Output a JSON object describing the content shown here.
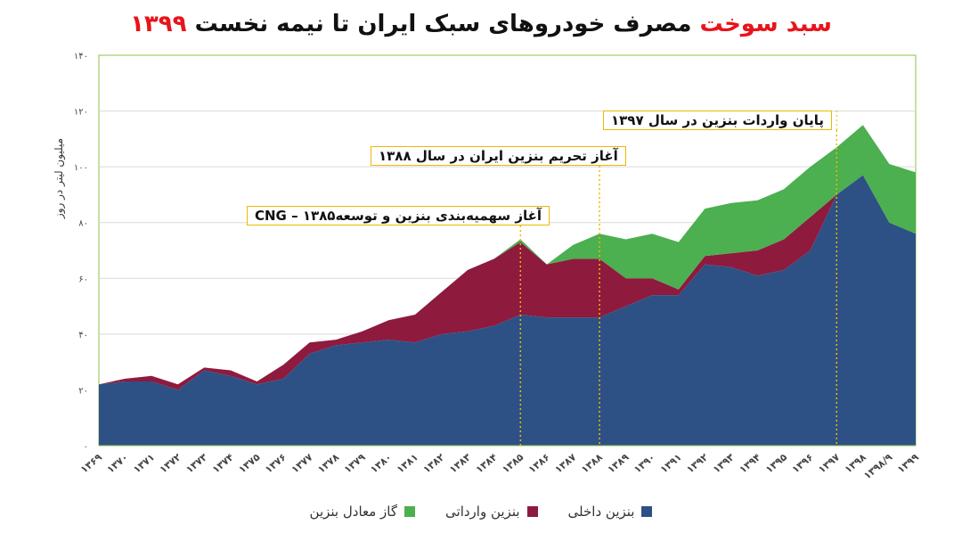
{
  "title": {
    "part1": "سبد سوخت",
    "part2": "مصرف خودروهای سبک ایران تا نیمه نخست",
    "part3": "۱۳۹۹",
    "color_red": "#e8141b",
    "color_black": "#111111"
  },
  "chart_data": {
    "type": "area",
    "stacked": true,
    "ylabel": "میلیون لیتر در روز",
    "ylim": [
      0,
      140
    ],
    "y_ticks": [
      "۰",
      "۲۰",
      "۴۰",
      "۶۰",
      "۸۰",
      "۱۰۰",
      "۱۲۰",
      "۱۴۰"
    ],
    "y_tick_values": [
      0,
      20,
      40,
      60,
      80,
      100,
      120,
      140
    ],
    "grid": true,
    "categories": [
      "۱۳۶۹",
      "۱۳۷۰",
      "۱۳۷۱",
      "۱۳۷۲",
      "۱۳۷۳",
      "۱۳۷۴",
      "۱۳۷۵",
      "۱۳۷۶",
      "۱۳۷۷",
      "۱۳۷۸",
      "۱۳۷۹",
      "۱۳۸۰",
      "۱۳۸۱",
      "۱۳۸۲",
      "۱۳۸۳",
      "۱۳۸۴",
      "۱۳۸۵",
      "۱۳۸۶",
      "۱۳۸۷",
      "۱۳۸۸",
      "۱۳۸۹",
      "۱۳۹۰",
      "۱۳۹۱",
      "۱۳۹۲",
      "۱۳۹۳",
      "۱۳۹۴",
      "۱۳۹۵",
      "۱۳۹۶",
      "۱۳۹۷",
      "۱۳۹۸",
      "۱۳۹۸/۹",
      "۱۳۹۹"
    ],
    "series": [
      {
        "name": "بنزین داخلی",
        "color": "#2d5185",
        "values": [
          22,
          23,
          23,
          20,
          27,
          25,
          22,
          24,
          33,
          36,
          37,
          38,
          37,
          40,
          41,
          43,
          47,
          46,
          46,
          46,
          50,
          54,
          54,
          65,
          64,
          61,
          63,
          70,
          90,
          97,
          80,
          76
        ]
      },
      {
        "name": "بنزین وارداتی",
        "color": "#8e1a3e",
        "values": [
          0,
          1,
          2,
          2,
          1,
          2,
          1,
          5,
          4,
          2,
          4,
          7,
          10,
          15,
          22,
          24,
          26,
          19,
          21,
          21,
          10,
          6,
          2,
          3,
          5,
          9,
          11,
          12,
          0,
          0,
          0,
          0
        ]
      },
      {
        "name": "گاز معادل بنزین",
        "color": "#4caf50",
        "values": [
          0,
          0,
          0,
          0,
          0,
          0,
          0,
          0,
          0,
          0,
          0,
          0,
          0,
          0,
          0,
          0,
          1,
          0,
          5,
          9,
          14,
          16,
          17,
          17,
          18,
          18,
          18,
          18,
          17,
          18,
          21,
          22
        ]
      }
    ],
    "legend_position": "bottom",
    "annotations": [
      {
        "text": "آغاز سهمیه‌بندی بنزین و توسعهCNG – ۱۳۸۵",
        "year": "۱۳۸۵"
      },
      {
        "text": "آغاز تحریم بنزین ایران در سال ۱۳۸۸",
        "year": "۱۳۸۸"
      },
      {
        "text": "پایان واردات بنزین در سال ۱۳۹۷",
        "year": "۱۳۹۷"
      }
    ]
  }
}
